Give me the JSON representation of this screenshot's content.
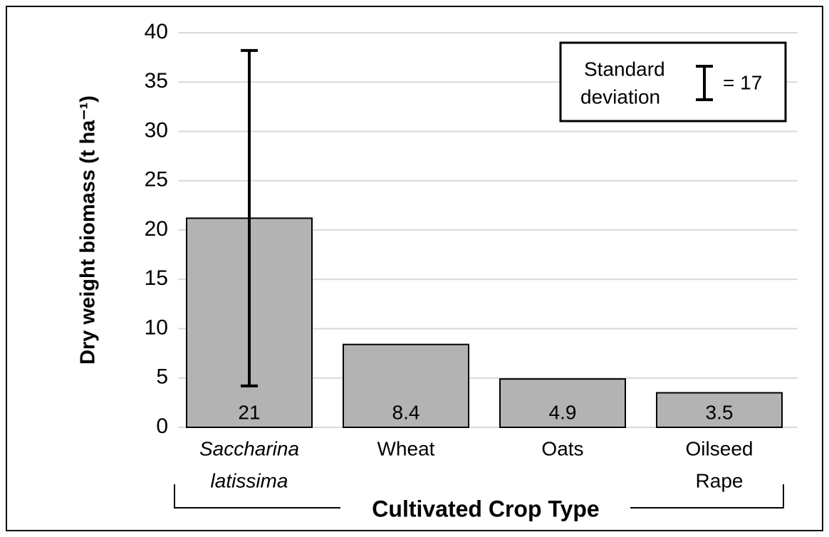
{
  "chart_data": {
    "type": "bar",
    "y_label": "Dry weight biomass (t ha⁻¹)",
    "x_label": "Cultivated Crop Type",
    "categories": [
      [
        "Saccharina",
        "latissima"
      ],
      [
        "Wheat"
      ],
      [
        "Oats"
      ],
      [
        "Oilseed",
        "Rape"
      ]
    ],
    "category_style": [
      "italic",
      "normal",
      "normal",
      "normal"
    ],
    "values": [
      21.2,
      8.4,
      4.9,
      3.5
    ],
    "value_labels": [
      "21",
      "8.4",
      "4.9",
      "3.5"
    ],
    "errors": [
      17,
      null,
      null,
      null
    ],
    "color": "#b3b3b3",
    "ylim": [
      0,
      40
    ],
    "yticks": [
      0,
      5,
      10,
      15,
      20,
      25,
      30,
      35,
      40
    ],
    "grid": true,
    "error_legend": {
      "label_lines": [
        "Standard",
        "deviation"
      ],
      "value_label": "= 17"
    }
  }
}
